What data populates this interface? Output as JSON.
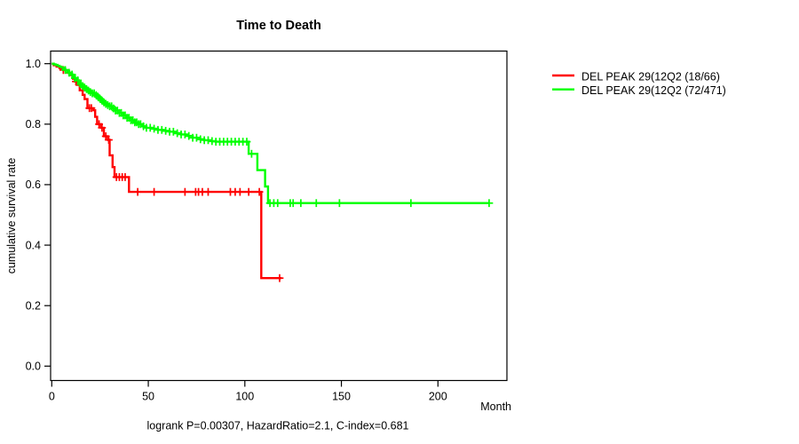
{
  "chart_data": {
    "type": "line",
    "variant": "kaplan_meier_survival_step",
    "title": "Time to Death",
    "xlabel": "Month",
    "ylabel": "cumulative survival rate",
    "footer": "logrank P=0.00307, HazardRatio=2.1, C-index=0.681",
    "x_ticks": [
      0,
      50,
      100,
      150,
      200
    ],
    "y_ticks": [
      "0.0",
      "0.2",
      "0.4",
      "0.6",
      "0.8",
      "1.0"
    ],
    "xlim": [
      0,
      235.7
    ],
    "ylim": [
      0,
      1.04
    ],
    "grid": false,
    "legend_position": "top-right-outside",
    "series": [
      {
        "name": "DEL PEAK 29(12Q2 (18/66)",
        "color": "#FF0000",
        "steps": [
          [
            0,
            1.0
          ],
          [
            1,
            0.995
          ],
          [
            2.5,
            0.99
          ],
          [
            4,
            0.985
          ],
          [
            6,
            0.979
          ],
          [
            8,
            0.97
          ],
          [
            9.5,
            0.962
          ],
          [
            11,
            0.95
          ],
          [
            12,
            0.941
          ],
          [
            13,
            0.93
          ],
          [
            14.5,
            0.912
          ],
          [
            16,
            0.897
          ],
          [
            17,
            0.883
          ],
          [
            18.5,
            0.853
          ],
          [
            21.5,
            0.846
          ],
          [
            22.5,
            0.824
          ],
          [
            23.5,
            0.8
          ],
          [
            25.5,
            0.788
          ],
          [
            27,
            0.76
          ],
          [
            29,
            0.748
          ],
          [
            30,
            0.697
          ],
          [
            31.5,
            0.658
          ],
          [
            32.5,
            0.625
          ],
          [
            40,
            0.576
          ],
          [
            108.5,
            0.291
          ]
        ],
        "end_month": 119,
        "censor_months": [
          6,
          12.5,
          19.5,
          20.5,
          24.5,
          26,
          28,
          29.5,
          33.5,
          35,
          36.5,
          38,
          44.5,
          53,
          69,
          74.5,
          76,
          78,
          81,
          92.5,
          95,
          97.5,
          102,
          107.5,
          118
        ]
      },
      {
        "name": "DEL PEAK 29(12Q2 (72/471)",
        "color": "#00FF00",
        "steps": [
          [
            0,
            1.0
          ],
          [
            1,
            0.998
          ],
          [
            2,
            0.996
          ],
          [
            3,
            0.993
          ],
          [
            4,
            0.99
          ],
          [
            5,
            0.987
          ],
          [
            6,
            0.983
          ],
          [
            7,
            0.979
          ],
          [
            8,
            0.975
          ],
          [
            9,
            0.97
          ],
          [
            10,
            0.964
          ],
          [
            11,
            0.958
          ],
          [
            12,
            0.952
          ],
          [
            13,
            0.945
          ],
          [
            14,
            0.938
          ],
          [
            15,
            0.932
          ],
          [
            16,
            0.926
          ],
          [
            17,
            0.921
          ],
          [
            18,
            0.916
          ],
          [
            19,
            0.911
          ],
          [
            20,
            0.906
          ],
          [
            21,
            0.902
          ],
          [
            22.5,
            0.896
          ],
          [
            24,
            0.89
          ],
          [
            25,
            0.884
          ],
          [
            26,
            0.878
          ],
          [
            27,
            0.872
          ],
          [
            28,
            0.867
          ],
          [
            29,
            0.863
          ],
          [
            30,
            0.859
          ],
          [
            31.5,
            0.852
          ],
          [
            33,
            0.845
          ],
          [
            35,
            0.837
          ],
          [
            37,
            0.829
          ],
          [
            39,
            0.821
          ],
          [
            41,
            0.813
          ],
          [
            43,
            0.806
          ],
          [
            45,
            0.8
          ],
          [
            47,
            0.793
          ],
          [
            49,
            0.788
          ],
          [
            52,
            0.785
          ],
          [
            55,
            0.781
          ],
          [
            58,
            0.778
          ],
          [
            61,
            0.775
          ],
          [
            64,
            0.77
          ],
          [
            67,
            0.766
          ],
          [
            70,
            0.761
          ],
          [
            73,
            0.755
          ],
          [
            76,
            0.75
          ],
          [
            79,
            0.747
          ],
          [
            82,
            0.744
          ],
          [
            85,
            0.742
          ],
          [
            102,
            0.702
          ],
          [
            106.5,
            0.648
          ],
          [
            110.5,
            0.594
          ],
          [
            112,
            0.539
          ]
        ],
        "end_month": 226.5,
        "censor_months": [
          7,
          9,
          10.5,
          12,
          13.5,
          15,
          16,
          17,
          18,
          19,
          20,
          21,
          22,
          23,
          24,
          25,
          26,
          27,
          28,
          29,
          30,
          31,
          32,
          33,
          34,
          35,
          36,
          37,
          38,
          39,
          40,
          41,
          42,
          43,
          44,
          45,
          46,
          47.5,
          49,
          51,
          53,
          55,
          57,
          59,
          61,
          63,
          65,
          67,
          69,
          71,
          73,
          75,
          77,
          79,
          81,
          83,
          85,
          87,
          89,
          91,
          93,
          95,
          97,
          99,
          101,
          103.5,
          113,
          115,
          117,
          123.5,
          125,
          129,
          137,
          149,
          186,
          226.5
        ]
      }
    ]
  }
}
